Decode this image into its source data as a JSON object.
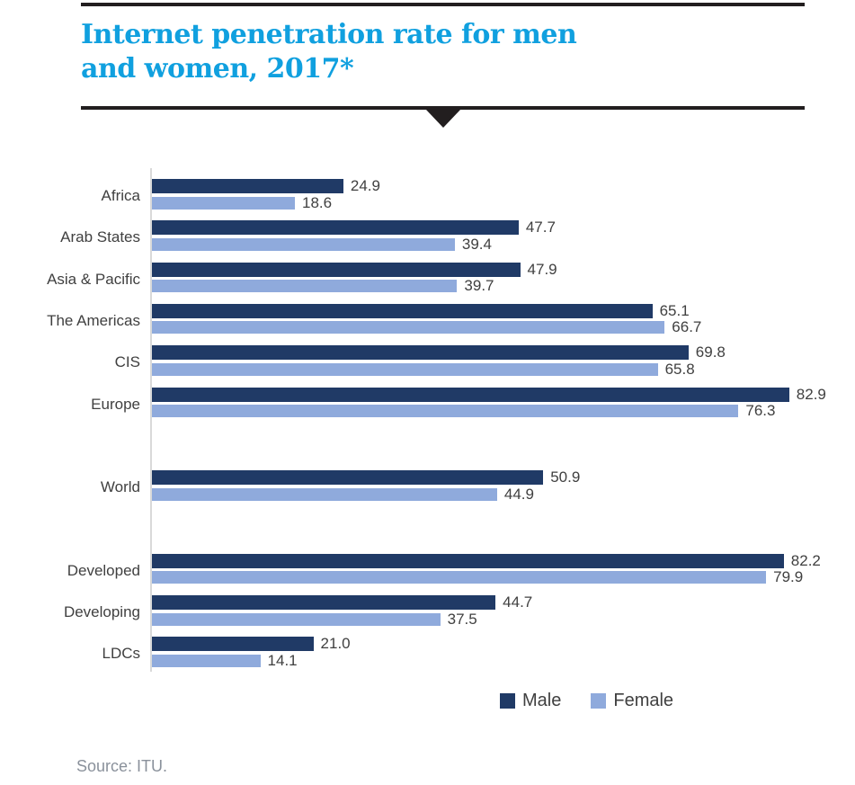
{
  "header": {
    "title_line1": "Internet penetration rate for men",
    "title_line2": "and women, 2017*"
  },
  "chart_data": {
    "type": "bar",
    "orientation": "horizontal",
    "title": "Internet penetration rate for men and women, 2017*",
    "categories": [
      "Africa",
      "Arab States",
      "Asia & Pacific",
      "The Americas",
      "CIS",
      "Europe",
      "",
      "World",
      "",
      "Developed",
      "Developing",
      "LDCs"
    ],
    "series": [
      {
        "name": "Male",
        "color": "#203a66",
        "values": [
          24.9,
          47.7,
          47.9,
          65.1,
          69.8,
          82.9,
          null,
          50.9,
          null,
          82.2,
          44.7,
          21.0
        ]
      },
      {
        "name": "Female",
        "color": "#8faadc",
        "values": [
          18.6,
          39.4,
          39.7,
          66.7,
          65.8,
          76.3,
          null,
          44.9,
          null,
          79.9,
          37.5,
          14.1
        ]
      }
    ],
    "xlim": [
      0,
      91.5
    ],
    "value_decimals": 1,
    "grid": false,
    "legend_position": "bottom-right",
    "axis_color": "#d9d9d9",
    "title_color": "#10a0df"
  },
  "source": {
    "text": "Source: ITU."
  }
}
